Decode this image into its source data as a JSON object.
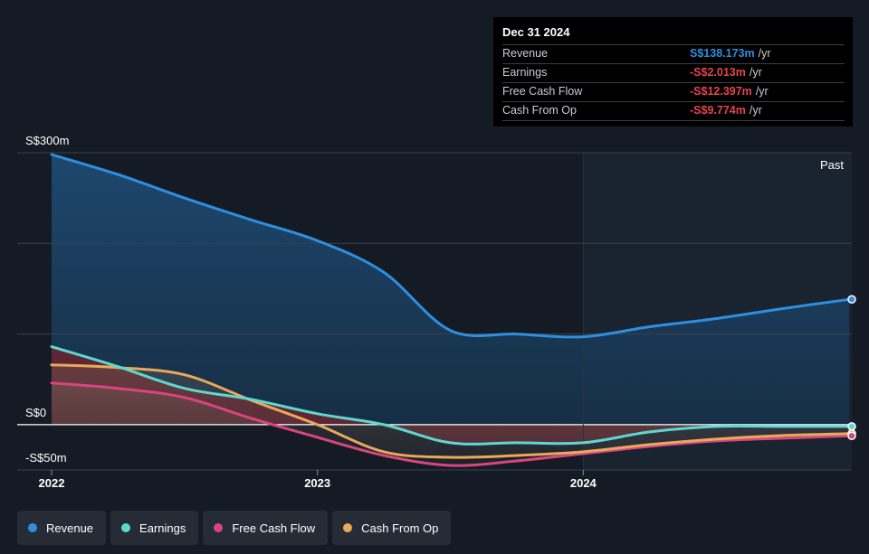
{
  "tooltip": {
    "date": "Dec 31 2024",
    "rows": [
      {
        "name": "Revenue",
        "value": "S$138.173m",
        "unit": "/yr",
        "color": "#2e8fe0"
      },
      {
        "name": "Earnings",
        "value": "-S$2.013m",
        "unit": "/yr",
        "color": "#e5454f"
      },
      {
        "name": "Free Cash Flow",
        "value": "-S$12.397m",
        "unit": "/yr",
        "color": "#e5454f"
      },
      {
        "name": "Cash From Op",
        "value": "-S$9.774m",
        "unit": "/yr",
        "color": "#e5454f"
      }
    ]
  },
  "legend": [
    {
      "label": "Revenue",
      "color": "#2e8fe0"
    },
    {
      "label": "Earnings",
      "color": "#5ed8cf"
    },
    {
      "label": "Free Cash Flow",
      "color": "#d9457f"
    },
    {
      "label": "Cash From Op",
      "color": "#e9a95a"
    }
  ],
  "chart_data": {
    "type": "line",
    "title": "",
    "xlabel": "",
    "ylabel": "",
    "y_tick_labels": [
      "S$300m",
      "S$0",
      "-S$50m"
    ],
    "x_tick_labels": [
      "2022",
      "2023",
      "2024"
    ],
    "region_label": "Past",
    "ylim": [
      -50,
      300
    ],
    "xlim": [
      2022.0,
      2025.0
    ],
    "x_ticks": [
      2022.0,
      2023.0,
      2024.0
    ],
    "y_ticks": [
      300,
      0,
      -50
    ],
    "past_start": 2024.0,
    "grid": true,
    "legend_position": "bottom-left",
    "series": [
      {
        "name": "Revenue",
        "color": "#2e8fe0",
        "x": [
          2022.0,
          2022.25,
          2022.5,
          2022.75,
          2023.0,
          2023.25,
          2023.5,
          2023.75,
          2024.0,
          2024.25,
          2024.5,
          2024.75,
          2025.0
        ],
        "values": [
          298,
          276,
          250,
          226,
          203,
          168,
          104,
          100,
          97,
          108,
          117,
          128,
          138.2
        ]
      },
      {
        "name": "Earnings",
        "color": "#5ed8cf",
        "x": [
          2022.0,
          2022.25,
          2022.5,
          2022.75,
          2023.0,
          2023.25,
          2023.5,
          2023.75,
          2024.0,
          2024.25,
          2024.5,
          2024.75,
          2025.0
        ],
        "values": [
          86,
          64,
          40,
          28,
          12,
          0,
          -20,
          -20,
          -20,
          -8,
          -2,
          -2,
          -2.0
        ]
      },
      {
        "name": "Free Cash Flow",
        "color": "#d9457f",
        "x": [
          2022.0,
          2022.25,
          2022.5,
          2022.75,
          2023.0,
          2023.25,
          2023.5,
          2023.75,
          2024.0,
          2024.25,
          2024.5,
          2024.75,
          2025.0
        ],
        "values": [
          46,
          40,
          30,
          7,
          -14,
          -34,
          -45,
          -40,
          -32,
          -24,
          -18,
          -15,
          -12.4
        ]
      },
      {
        "name": "Cash From Op",
        "color": "#e9a95a",
        "x": [
          2022.0,
          2022.25,
          2022.5,
          2022.75,
          2023.0,
          2023.25,
          2023.5,
          2023.75,
          2024.0,
          2024.25,
          2024.5,
          2024.75,
          2025.0
        ],
        "values": [
          66,
          63,
          55,
          27,
          0,
          -30,
          -36,
          -34,
          -30,
          -22,
          -16,
          -12,
          -9.8
        ]
      }
    ]
  }
}
